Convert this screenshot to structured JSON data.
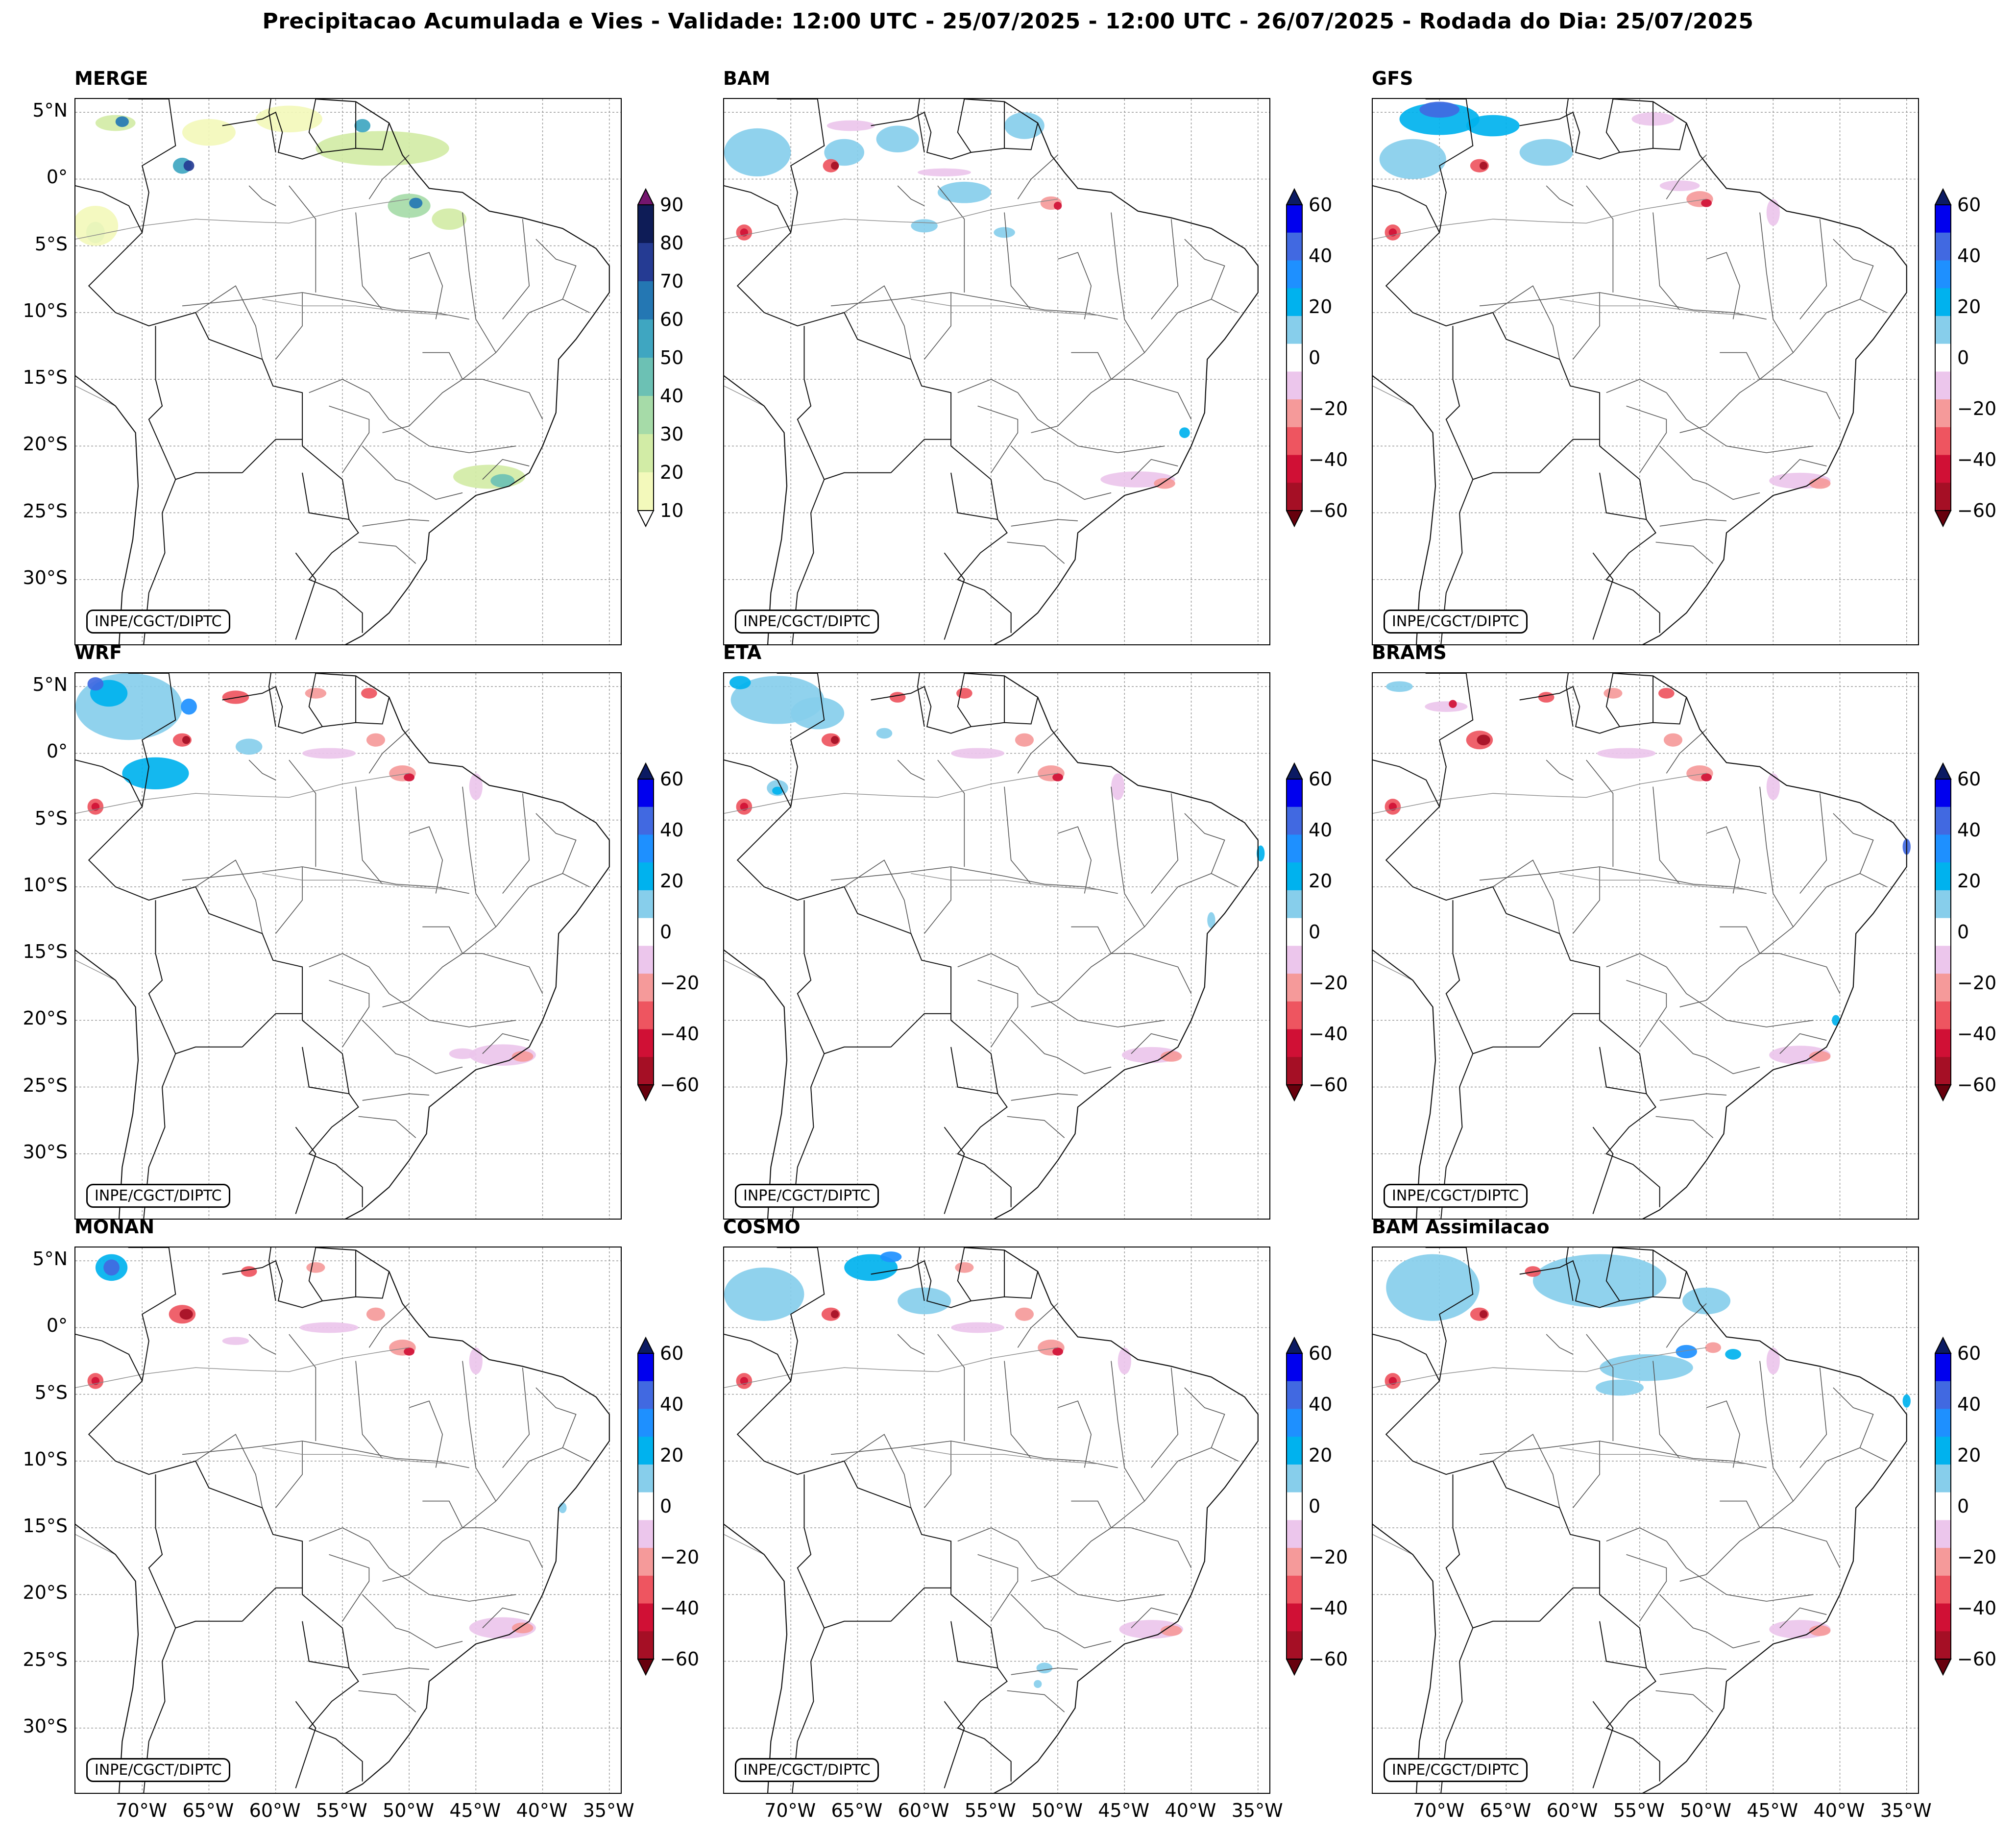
{
  "title": "Precipitacao Acumulada e Vies - Validade: 12:00 UTC - 25/07/2025 - 12:00 UTC - 26/07/2025 - Rodada do Dia: 25/07/2025",
  "credit": "INPE/CGCT/DIPTC",
  "panels": [
    {
      "name": "MERGE",
      "type": "precip"
    },
    {
      "name": "BAM",
      "type": "bias"
    },
    {
      "name": "GFS",
      "type": "bias"
    },
    {
      "name": "WRF",
      "type": "bias"
    },
    {
      "name": "ETA",
      "type": "bias"
    },
    {
      "name": "BRAMS",
      "type": "bias"
    },
    {
      "name": "MONAN",
      "type": "bias"
    },
    {
      "name": "COSMO",
      "type": "bias"
    },
    {
      "name": "BAM Assimilacao",
      "type": "bias"
    }
  ],
  "lat_ticks": [
    "5°N",
    "0°",
    "5°S",
    "10°S",
    "15°S",
    "20°S",
    "25°S",
    "30°S"
  ],
  "lon_ticks": [
    "70°W",
    "65°W",
    "60°W",
    "55°W",
    "50°W",
    "45°W",
    "40°W",
    "35°W"
  ],
  "precip_colorbar": {
    "tick_labels": [
      "90",
      "80",
      "70",
      "60",
      "50",
      "40",
      "30",
      "20",
      "10"
    ],
    "levels": [
      10,
      20,
      30,
      40,
      50,
      60,
      70,
      80,
      90
    ],
    "colors": [
      "#f3f9bb",
      "#d2eca6",
      "#a6dba8",
      "#6cc1b4",
      "#3fa6c1",
      "#2477b3",
      "#253b93",
      "#0e1c57"
    ],
    "over_color": "#74166e",
    "under_color": "#ffffff"
  },
  "bias_colorbar": {
    "tick_labels": [
      "60",
      "40",
      "20",
      "0",
      "−20",
      "−40",
      "−60"
    ],
    "levels": [
      -60,
      -50,
      -40,
      -30,
      -20,
      -10,
      10,
      20,
      30,
      40,
      50,
      60
    ],
    "colors": [
      "#a50f25",
      "#d01035",
      "#ee5560",
      "#f59a9a",
      "#ecc6ec",
      "#ffffff",
      "#87ceeb",
      "#00b2ee",
      "#1e90ff",
      "#4169e1",
      "#0000ee"
    ],
    "over_color": "#0b1a63",
    "under_color": "#67000d"
  }
}
